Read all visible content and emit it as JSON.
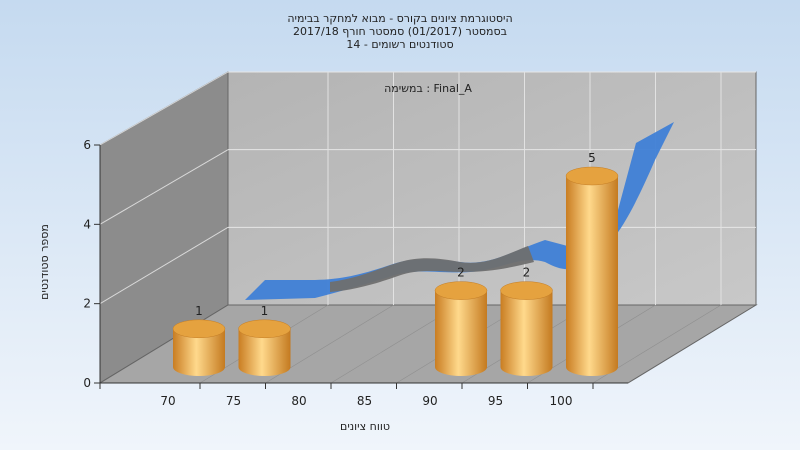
{
  "chart_data": {
    "type": "bar",
    "title_lines": [
      "היסטוגרמת ציונים בקורס - מבוא למחקר בבימיה",
      "בסמסטר  (01/2017)  סמסטר חורף 2017/18",
      "סטודנטים רשומים - 14"
    ],
    "annotation": "במשימה : Final_A",
    "xlabel": "טווח ציונים",
    "ylabel": "מספר סטודנטים",
    "x_ticks": [
      "70",
      "75",
      "80",
      "85",
      "90",
      "95",
      "100"
    ],
    "y_ticks": [
      "0",
      "2",
      "4",
      "6"
    ],
    "ylim": [
      0,
      6
    ],
    "categories": [
      "70",
      "75",
      "90",
      "95",
      "100"
    ],
    "values": [
      1,
      1,
      2,
      2,
      5
    ],
    "data_labels": [
      "1",
      "1",
      "2",
      "2",
      "5"
    ],
    "grid": true,
    "colors": {
      "background_top": "#c7dcf1",
      "background_bottom": "#eef4fb",
      "bar": "#e8a545",
      "bar_light": "#ffd68a",
      "bar_dark": "#c67b20",
      "curve_blue": "#3f7fd6",
      "curve_gray": "#6f6f6f",
      "back_wall": "#bcbcbc",
      "left_wall": "#8a8a8a",
      "floor": "#a9a9a9"
    }
  }
}
